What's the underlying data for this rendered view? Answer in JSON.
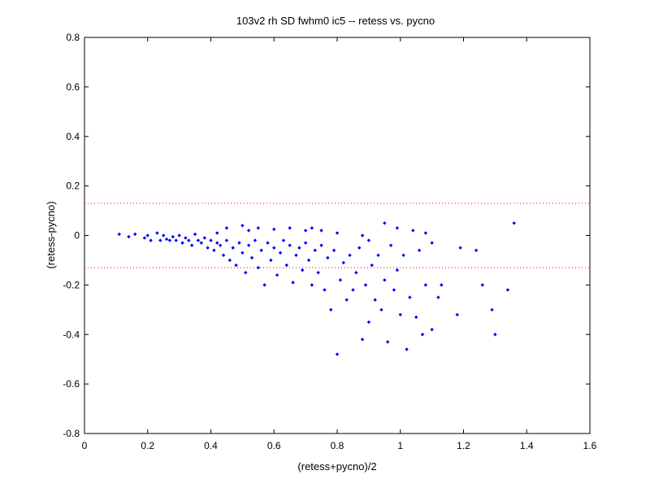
{
  "chart_data": {
    "type": "scatter",
    "title": "103v2 rh SD fwhm0 ic5 -- retess vs. pycno",
    "xlabel": "(retess+pycno)/2",
    "ylabel": "(retess-pycno)",
    "xlim": [
      0,
      1.6
    ],
    "ylim": [
      -0.8,
      0.8
    ],
    "x_ticks": [
      0,
      0.2,
      0.4,
      0.6,
      0.8,
      1,
      1.2,
      1.4,
      1.6
    ],
    "x_tick_labels": [
      "0",
      "0.2",
      "0.4",
      "0.6",
      "0.8",
      "1",
      "1.2",
      "1.4",
      "1.6"
    ],
    "y_ticks": [
      -0.8,
      -0.6,
      -0.4,
      -0.2,
      0,
      0.2,
      0.4,
      0.6,
      0.8
    ],
    "y_tick_labels": [
      "-0.8",
      "-0.6",
      "-0.4",
      "-0.2",
      "0",
      "0.2",
      "0.4",
      "0.6",
      "0.8"
    ],
    "grid": false,
    "marker_color": "#0000ff",
    "reference_line_color": "#ff0000",
    "reference_lines_y": [
      0.13,
      -0.13
    ],
    "series": [
      {
        "points": [
          [
            0.11,
            0.005
          ],
          [
            0.14,
            -0.005
          ],
          [
            0.16,
            0.005
          ],
          [
            0.19,
            -0.01
          ],
          [
            0.2,
            0.0
          ],
          [
            0.21,
            -0.02
          ],
          [
            0.23,
            0.01
          ],
          [
            0.24,
            -0.02
          ],
          [
            0.25,
            0.0
          ],
          [
            0.26,
            -0.015
          ],
          [
            0.27,
            -0.02
          ],
          [
            0.28,
            -0.005
          ],
          [
            0.29,
            -0.02
          ],
          [
            0.3,
            0.0
          ],
          [
            0.31,
            -0.03
          ],
          [
            0.32,
            -0.01
          ],
          [
            0.33,
            -0.02
          ],
          [
            0.34,
            -0.04
          ],
          [
            0.35,
            0.005
          ],
          [
            0.36,
            -0.02
          ],
          [
            0.37,
            -0.03
          ],
          [
            0.38,
            -0.01
          ],
          [
            0.39,
            -0.05
          ],
          [
            0.4,
            -0.02
          ],
          [
            0.41,
            -0.06
          ],
          [
            0.42,
            -0.03
          ],
          [
            0.43,
            -0.04
          ],
          [
            0.44,
            -0.08
          ],
          [
            0.45,
            -0.02
          ],
          [
            0.46,
            -0.1
          ],
          [
            0.47,
            -0.05
          ],
          [
            0.48,
            -0.12
          ],
          [
            0.49,
            -0.03
          ],
          [
            0.5,
            -0.07
          ],
          [
            0.51,
            -0.15
          ],
          [
            0.52,
            -0.04
          ],
          [
            0.53,
            -0.09
          ],
          [
            0.54,
            -0.02
          ],
          [
            0.55,
            -0.13
          ],
          [
            0.56,
            -0.06
          ],
          [
            0.57,
            -0.2
          ],
          [
            0.58,
            -0.03
          ],
          [
            0.59,
            -0.1
          ],
          [
            0.6,
            -0.05
          ],
          [
            0.61,
            -0.16
          ],
          [
            0.62,
            -0.07
          ],
          [
            0.63,
            -0.02
          ],
          [
            0.64,
            -0.12
          ],
          [
            0.65,
            -0.04
          ],
          [
            0.66,
            -0.19
          ],
          [
            0.67,
            -0.08
          ],
          [
            0.68,
            -0.05
          ],
          [
            0.69,
            -0.14
          ],
          [
            0.7,
            -0.03
          ],
          [
            0.71,
            -0.1
          ],
          [
            0.72,
            -0.2
          ],
          [
            0.73,
            -0.06
          ],
          [
            0.74,
            -0.15
          ],
          [
            0.75,
            -0.04
          ],
          [
            0.76,
            -0.22
          ],
          [
            0.77,
            -0.09
          ],
          [
            0.78,
            -0.3
          ],
          [
            0.79,
            -0.06
          ],
          [
            0.8,
            -0.48
          ],
          [
            0.81,
            -0.18
          ],
          [
            0.82,
            -0.11
          ],
          [
            0.83,
            -0.26
          ],
          [
            0.84,
            -0.08
          ],
          [
            0.85,
            -0.22
          ],
          [
            0.86,
            -0.15
          ],
          [
            0.87,
            -0.05
          ],
          [
            0.88,
            -0.42
          ],
          [
            0.89,
            -0.2
          ],
          [
            0.9,
            -0.35
          ],
          [
            0.91,
            -0.12
          ],
          [
            0.92,
            -0.26
          ],
          [
            0.93,
            -0.08
          ],
          [
            0.94,
            -0.3
          ],
          [
            0.95,
            -0.18
          ],
          [
            0.96,
            -0.43
          ],
          [
            0.97,
            -0.04
          ],
          [
            0.98,
            -0.22
          ],
          [
            0.99,
            -0.14
          ],
          [
            1.0,
            -0.32
          ],
          [
            1.01,
            -0.08
          ],
          [
            1.02,
            -0.46
          ],
          [
            1.03,
            -0.25
          ],
          [
            1.05,
            -0.33
          ],
          [
            1.06,
            -0.06
          ],
          [
            1.07,
            -0.4
          ],
          [
            1.08,
            -0.2
          ],
          [
            1.1,
            -0.38
          ],
          [
            1.12,
            -0.25
          ],
          [
            1.13,
            -0.2
          ],
          [
            1.18,
            -0.32
          ],
          [
            1.19,
            -0.05
          ],
          [
            1.24,
            -0.06
          ],
          [
            1.26,
            -0.2
          ],
          [
            1.29,
            -0.3
          ],
          [
            1.3,
            -0.4
          ],
          [
            1.34,
            -0.22
          ],
          [
            1.36,
            0.05
          ],
          [
            0.45,
            0.03
          ],
          [
            0.5,
            0.04
          ],
          [
            0.52,
            0.02
          ],
          [
            0.55,
            0.03
          ],
          [
            0.6,
            0.025
          ],
          [
            0.65,
            0.03
          ],
          [
            0.7,
            0.02
          ],
          [
            0.72,
            0.03
          ],
          [
            0.75,
            0.02
          ],
          [
            0.8,
            0.01
          ],
          [
            0.88,
            0.0
          ],
          [
            0.9,
            -0.02
          ],
          [
            0.95,
            0.05
          ],
          [
            1.04,
            0.02
          ],
          [
            1.08,
            0.01
          ],
          [
            1.1,
            -0.03
          ],
          [
            0.99,
            0.03
          ],
          [
            0.42,
            0.01
          ]
        ]
      }
    ]
  }
}
